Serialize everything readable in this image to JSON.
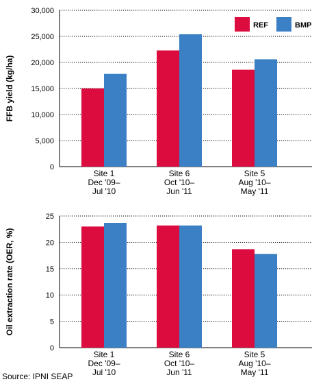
{
  "chart_data": [
    {
      "type": "bar",
      "categories": [
        [
          "Site 1",
          "Dec '09–",
          "Jul '10"
        ],
        [
          "Site 6",
          "Oct '10–",
          "Jun '11"
        ],
        [
          "Site 5",
          "Aug '10–",
          "May '11"
        ]
      ],
      "series": [
        {
          "name": "REF",
          "color": "#dc0c3e",
          "values": [
            15000,
            22300,
            18600
          ]
        },
        {
          "name": "BMP",
          "color": "#3b7fc4",
          "values": [
            17800,
            25400,
            20600
          ]
        }
      ],
      "ylabel": "FFB yield (kg/ha)",
      "ylim": [
        0,
        30000
      ],
      "yticks": [
        0,
        5000,
        10000,
        15000,
        20000,
        25000,
        30000
      ],
      "ytick_labels": [
        "0",
        "5,000",
        "10,000",
        "15,000",
        "20,000",
        "25,000",
        "30,000"
      ],
      "legend": "top-right",
      "grid": "horizontal dotted"
    },
    {
      "type": "bar",
      "categories": [
        [
          "Site 1",
          "Dec '09–",
          "Jul '10"
        ],
        [
          "Site 6",
          "Oct '10–",
          "Jun '11"
        ],
        [
          "Site 5",
          "Aug '10–",
          "May '11"
        ]
      ],
      "series": [
        {
          "color": "#dc0c3e",
          "values": [
            23.0,
            23.2,
            18.7
          ]
        },
        {
          "color": "#3b7fc4",
          "values": [
            23.7,
            23.2,
            17.8
          ]
        }
      ],
      "ylabel": "Oil extraction rate (OER, %)",
      "ylim": [
        0,
        25
      ],
      "yticks": [
        0,
        5,
        10,
        15,
        20,
        25
      ],
      "ytick_labels": [
        "0",
        "5",
        "10",
        "15",
        "20",
        "25"
      ],
      "grid": "horizontal dotted"
    }
  ],
  "source": "Source: IPNI SEAP"
}
